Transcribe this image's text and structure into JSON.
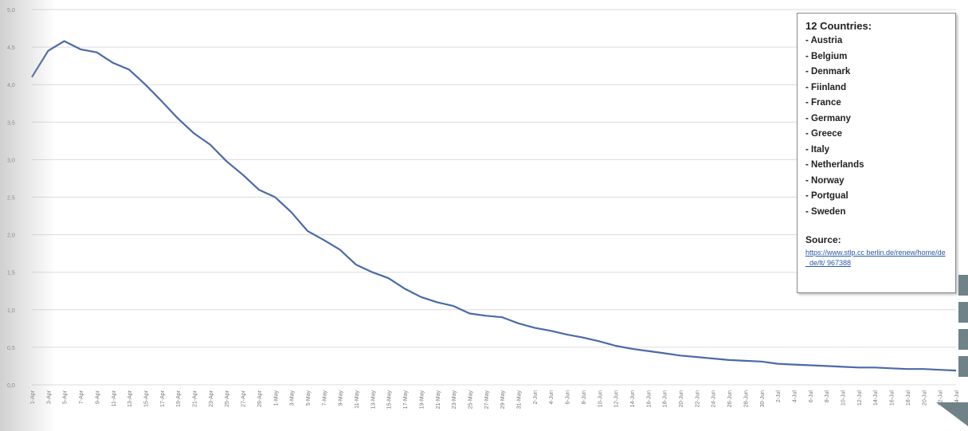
{
  "chart_data": {
    "type": "line",
    "title": "",
    "xlabel": "",
    "ylabel": "",
    "ylim": [
      0,
      5
    ],
    "yticks": [
      "0,0",
      "0,5",
      "1,0",
      "1,5",
      "2,0",
      "2,5",
      "3,0",
      "3,5",
      "4,0",
      "4,5",
      "5,0"
    ],
    "grid": true,
    "legend_position": "top-right",
    "x": [
      "1-Apr",
      "3-Apr",
      "5-Apr",
      "7-Apr",
      "9-Apr",
      "11-Apr",
      "13-Apr",
      "15-Apr",
      "17-Apr",
      "19-Apr",
      "21-Apr",
      "23-Apr",
      "25-Apr",
      "27-Apr",
      "29-Apr",
      "1-May",
      "3-May",
      "5-May",
      "7-May",
      "9-May",
      "11-May",
      "13-May",
      "15-May",
      "17-May",
      "19-May",
      "21-May",
      "23-May",
      "25-May",
      "27-May",
      "29-May",
      "31-May",
      "2-Jun",
      "4-Jun",
      "6-Jun",
      "8-Jun",
      "10-Jun",
      "12-Jun",
      "14-Jun",
      "16-Jun",
      "18-Jun",
      "20-Jun",
      "22-Jun",
      "24-Jun",
      "26-Jun",
      "28-Jun",
      "30-Jun",
      "2-Jul",
      "4-Jul",
      "6-Jul",
      "8-Jul",
      "10-Jul",
      "12-Jul",
      "14-Jul",
      "16-Jul",
      "18-Jul",
      "20-Jul",
      "22-Jul",
      "24-Jul"
    ],
    "series": [
      {
        "values": [
          4.1,
          4.45,
          4.58,
          4.47,
          4.43,
          4.29,
          4.2,
          4.0,
          3.78,
          3.55,
          3.35,
          3.2,
          2.98,
          2.8,
          2.6,
          2.5,
          2.3,
          2.05,
          1.93,
          1.8,
          1.6,
          1.5,
          1.42,
          1.28,
          1.17,
          1.1,
          1.05,
          0.95,
          0.92,
          0.9,
          0.82,
          0.76,
          0.72,
          0.67,
          0.63,
          0.58,
          0.52,
          0.48,
          0.45,
          0.42,
          0.39,
          0.37,
          0.35,
          0.33,
          0.32,
          0.31,
          0.28,
          0.27,
          0.26,
          0.25,
          0.24,
          0.23,
          0.23,
          0.22,
          0.21,
          0.21,
          0.2,
          0.19
        ]
      }
    ],
    "line_color": "#4a6aa8",
    "legend": {
      "title": "12 Countries:",
      "items": [
        "- Austria",
        "- Belgium",
        "- Denmark",
        "- Fiinland",
        "- France",
        "- Germany",
        "- Greece",
        "- Italy",
        "- Netherlands",
        "- Norway",
        "- Portgual",
        "- Sweden"
      ],
      "source_label": "Source:",
      "source_url": "https://www.stlp.cc berlin.de/renew/home/de_de/lt/ 967388"
    }
  }
}
